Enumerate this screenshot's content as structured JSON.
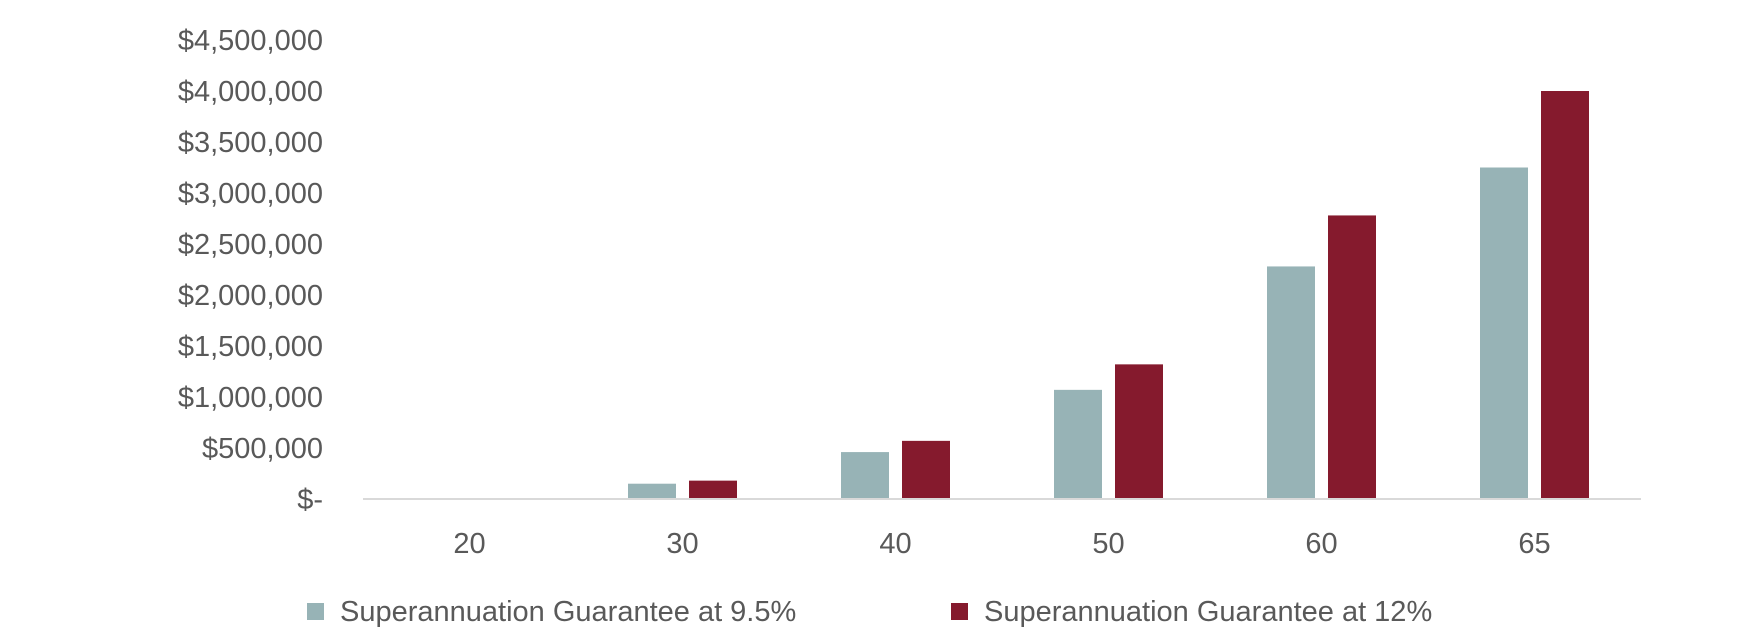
{
  "chart_data": {
    "type": "bar",
    "categories": [
      "20",
      "30",
      "40",
      "50",
      "60",
      "65"
    ],
    "series": [
      {
        "name": "Superannuation Guarantee at 9.5%",
        "color": "#97b3b6",
        "values": [
          0,
          150000,
          460000,
          1070000,
          2280000,
          3250000
        ]
      },
      {
        "name": "Superannuation Guarantee at 12%",
        "color": "#851a2d",
        "values": [
          0,
          180000,
          570000,
          1320000,
          2780000,
          4000000
        ]
      }
    ],
    "y_ticks": [
      {
        "value": 0,
        "label": "$-"
      },
      {
        "value": 500000,
        "label": "$500,000"
      },
      {
        "value": 1000000,
        "label": "$1,000,000"
      },
      {
        "value": 1500000,
        "label": "$1,500,000"
      },
      {
        "value": 2000000,
        "label": "$2,000,000"
      },
      {
        "value": 2500000,
        "label": "$2,500,000"
      },
      {
        "value": 3000000,
        "label": "$3,000,000"
      },
      {
        "value": 3500000,
        "label": "$3,500,000"
      },
      {
        "value": 4000000,
        "label": "$4,000,000"
      },
      {
        "value": 4500000,
        "label": "$4,500,000"
      }
    ],
    "ylim": [
      0,
      4500000
    ],
    "grid": false,
    "legend_position": "bottom",
    "axis_color": "#d9d9d9",
    "text_color": "#595959"
  }
}
